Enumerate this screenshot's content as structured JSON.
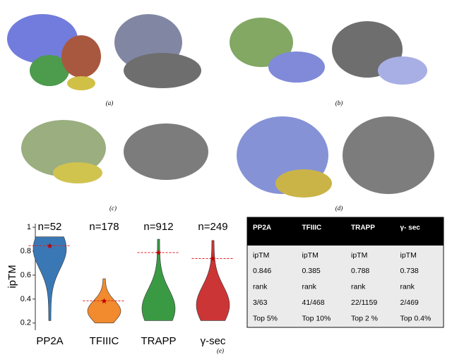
{
  "panels": [
    "(a)",
    "(b)",
    "(c)",
    "(d)"
  ],
  "chart_data": {
    "type": "violin",
    "panel": "(e)",
    "y_label": "ipTM",
    "categories": [
      "PP2A",
      "TFIIIC",
      "TRAPP",
      "γ-sec"
    ],
    "annotations": [
      "n=52",
      "n=178",
      "n=912",
      "n=249"
    ],
    "colors": [
      "#3a78b5",
      "#f28a2e",
      "#3a9a44",
      "#cc3535"
    ],
    "values": [
      0.846,
      0.385,
      0.788,
      0.738
    ],
    "mins": [
      0.22,
      0.2,
      0.22,
      0.22
    ],
    "maxs": [
      0.92,
      0.57,
      0.9,
      0.89
    ],
    "modes": [
      0.82,
      0.3,
      0.32,
      0.35
    ],
    "ylim": [
      0.14,
      1.03
    ],
    "yticks": [
      0.2,
      0.4,
      0.6,
      0.8,
      1.0
    ]
  },
  "table": {
    "header": [
      "PP2A",
      "TFIIIC",
      "TRAPP",
      "γ- sec"
    ],
    "rows": [
      [
        "ipTM",
        "ipTM",
        "ipTM",
        "ipTM"
      ],
      [
        "0.846",
        "0.385",
        "0.788",
        "0.738"
      ],
      [
        "rank",
        "rank",
        "rank",
        "rank"
      ],
      [
        "3/63",
        "41/468",
        "22/1159",
        "2/469"
      ],
      [
        "Top 5%",
        "Top 10%",
        "Top 2 %",
        "Top 0.4%"
      ]
    ]
  }
}
